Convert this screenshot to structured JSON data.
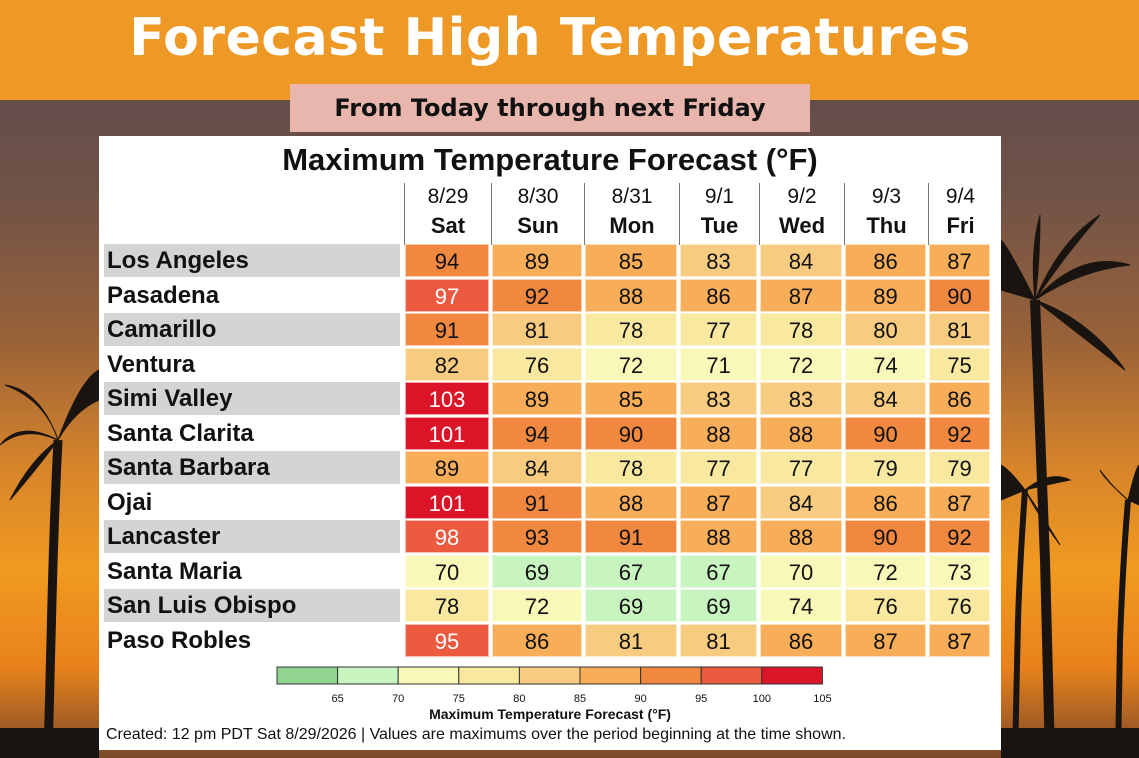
{
  "header": {
    "title": "Forecast High Temperatures",
    "subtitle": "From Today through next Friday"
  },
  "colors": {
    "band": "#ee9826",
    "subtitle_bg": "#e8b6ac",
    "row_shade": "#d4d4d4"
  },
  "chart_data": {
    "type": "heatmap",
    "title": "Maximum Temperature Forecast (°F)",
    "columns": [
      {
        "date": "8/29",
        "day": "Sat"
      },
      {
        "date": "8/30",
        "day": "Sun"
      },
      {
        "date": "8/31",
        "day": "Mon"
      },
      {
        "date": "9/1",
        "day": "Tue"
      },
      {
        "date": "9/2",
        "day": "Wed"
      },
      {
        "date": "9/3",
        "day": "Thu"
      },
      {
        "date": "9/4",
        "day": "Fri"
      }
    ],
    "rows": [
      {
        "city": "Los Angeles",
        "values": [
          94,
          89,
          85,
          83,
          84,
          86,
          87
        ]
      },
      {
        "city": "Pasadena",
        "values": [
          97,
          92,
          88,
          86,
          87,
          89,
          90
        ]
      },
      {
        "city": "Camarillo",
        "values": [
          91,
          81,
          78,
          77,
          78,
          80,
          81
        ]
      },
      {
        "city": "Ventura",
        "values": [
          82,
          76,
          72,
          71,
          72,
          74,
          75
        ]
      },
      {
        "city": "Simi Valley",
        "values": [
          103,
          89,
          85,
          83,
          83,
          84,
          86
        ]
      },
      {
        "city": "Santa Clarita",
        "values": [
          101,
          94,
          90,
          88,
          88,
          90,
          92
        ]
      },
      {
        "city": "Santa Barbara",
        "values": [
          89,
          84,
          78,
          77,
          77,
          79,
          79
        ]
      },
      {
        "city": "Ojai",
        "values": [
          101,
          91,
          88,
          87,
          84,
          86,
          87
        ]
      },
      {
        "city": "Lancaster",
        "values": [
          98,
          93,
          91,
          88,
          88,
          90,
          92
        ]
      },
      {
        "city": "Santa Maria",
        "values": [
          70,
          69,
          67,
          67,
          70,
          72,
          73
        ]
      },
      {
        "city": "San Luis Obispo",
        "values": [
          78,
          72,
          69,
          69,
          74,
          76,
          76
        ]
      },
      {
        "city": "Paso Robles",
        "values": [
          95,
          86,
          81,
          81,
          86,
          87,
          87
        ]
      }
    ],
    "colorbar": {
      "label": "Maximum Temperature Forecast (°F)",
      "ticks": [
        "65",
        "70",
        "75",
        "80",
        "85",
        "90",
        "95",
        "100",
        "105"
      ],
      "colors": [
        "#90d490",
        "#c8f4c0",
        "#f8f8b8",
        "#f8e8a0",
        "#f8cc80",
        "#f8ae58",
        "#f08840",
        "#ec5a40",
        "#dc1428"
      ]
    },
    "footer": "Created: 12 pm PDT Sat 8/29/2026  |  Values are maximums over the period beginning at the time shown."
  }
}
